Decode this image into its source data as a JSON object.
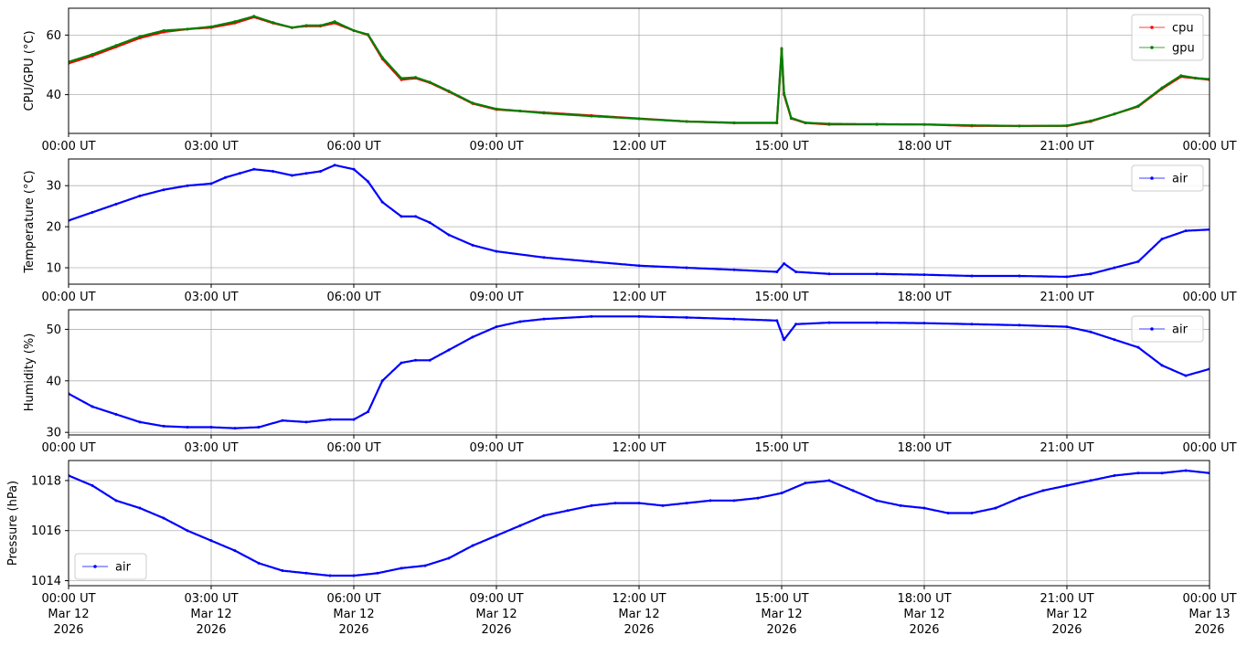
{
  "chart_data": [
    {
      "type": "line",
      "ylabel": "CPU/GPU (°C)",
      "ylim": [
        27,
        69
      ],
      "yticks": [
        40,
        60
      ],
      "grid": true,
      "legend_position": "top-right",
      "x_tick_labels": [
        "00:00 UT",
        "03:00 UT",
        "06:00 UT",
        "09:00 UT",
        "12:00 UT",
        "15:00 UT",
        "18:00 UT",
        "21:00 UT",
        "00:00 UT"
      ],
      "x_unit": "hours since 00:00 UT Mar 12 2026",
      "xlim": [
        0,
        24
      ],
      "series": [
        {
          "name": "cpu",
          "color": "#ff0000",
          "x": [
            0,
            0.5,
            1,
            1.5,
            2,
            2.5,
            3,
            3.5,
            3.9,
            4.3,
            4.7,
            5,
            5.3,
            5.6,
            6,
            6.3,
            6.6,
            7,
            7.3,
            7.6,
            8,
            8.5,
            9,
            9.5,
            10,
            11,
            12,
            13,
            14,
            14.9,
            15.0,
            15.05,
            15.2,
            15.5,
            16,
            17,
            18,
            19,
            20,
            21,
            21.5,
            22,
            22.5,
            23,
            23.4,
            23.7,
            24
          ],
          "y": [
            50.5,
            53,
            56,
            59,
            61,
            62,
            62.5,
            64,
            66,
            64,
            62.5,
            63,
            63,
            64,
            61.5,
            60,
            52,
            45,
            45.5,
            44,
            41,
            37,
            35,
            34.5,
            34,
            33,
            32,
            31,
            30.5,
            30.5,
            55,
            40,
            32,
            30.5,
            30,
            30,
            30,
            29.5,
            29.5,
            29.5,
            31,
            33.5,
            36,
            42,
            46,
            45.5,
            45
          ]
        },
        {
          "name": "gpu",
          "color": "#008000",
          "x": [
            0,
            0.5,
            1,
            1.5,
            2,
            2.5,
            3,
            3.5,
            3.9,
            4.3,
            4.7,
            5,
            5.3,
            5.6,
            6,
            6.3,
            6.6,
            7,
            7.3,
            7.6,
            8,
            8.5,
            9,
            9.5,
            10,
            11,
            12,
            13,
            14,
            14.9,
            15.0,
            15.05,
            15.2,
            15.5,
            16,
            17,
            18,
            19,
            20,
            21,
            21.5,
            22,
            22.5,
            23,
            23.4,
            23.7,
            24
          ],
          "y": [
            51,
            53.5,
            56.5,
            59.5,
            61.5,
            62,
            62.8,
            64.5,
            66.3,
            64.2,
            62.5,
            63.2,
            63.2,
            64.5,
            61.5,
            60.2,
            52.5,
            45.5,
            45.8,
            44.2,
            41.2,
            37.2,
            35.2,
            34.5,
            33.8,
            32.8,
            31.9,
            31,
            30.6,
            30.6,
            55.5,
            40.5,
            32.2,
            30.6,
            30.2,
            30.1,
            30,
            29.7,
            29.5,
            29.6,
            31.2,
            33.5,
            36.2,
            42.3,
            46.4,
            45.6,
            45.2
          ]
        }
      ]
    },
    {
      "type": "line",
      "ylabel": "Temperature (°C)",
      "ylim": [
        6,
        36.5
      ],
      "yticks": [
        10,
        20,
        30
      ],
      "grid": true,
      "legend_position": "top-right",
      "x_tick_labels": [
        "00:00 UT",
        "03:00 UT",
        "06:00 UT",
        "09:00 UT",
        "12:00 UT",
        "15:00 UT",
        "18:00 UT",
        "21:00 UT",
        "00:00 UT"
      ],
      "x_unit": "hours since 00:00 UT Mar 12 2026",
      "xlim": [
        0,
        24
      ],
      "series": [
        {
          "name": "air",
          "color": "#0000ff",
          "x": [
            0,
            0.5,
            1,
            1.5,
            2,
            2.5,
            3,
            3.3,
            3.6,
            3.9,
            4.3,
            4.7,
            5,
            5.3,
            5.6,
            6,
            6.3,
            6.6,
            7,
            7.3,
            7.6,
            8,
            8.5,
            9,
            10,
            11,
            12,
            13,
            14,
            14.9,
            15.05,
            15.3,
            16,
            17,
            18,
            19,
            20,
            21,
            21.5,
            22,
            22.5,
            23,
            23.5,
            24
          ],
          "y": [
            21.5,
            23.5,
            25.5,
            27.5,
            29,
            30,
            30.5,
            32,
            33,
            34,
            33.5,
            32.5,
            33,
            33.5,
            35,
            34,
            31,
            26,
            22.5,
            22.5,
            21,
            18,
            15.5,
            14,
            12.5,
            11.5,
            10.5,
            10,
            9.5,
            9,
            11,
            9,
            8.5,
            8.5,
            8.3,
            8,
            8,
            7.8,
            8.5,
            10,
            11.5,
            17,
            19,
            19.3
          ]
        }
      ]
    },
    {
      "type": "line",
      "ylabel": "Humidity (%)",
      "ylim": [
        29.5,
        53.8
      ],
      "yticks": [
        30,
        40,
        50
      ],
      "grid": true,
      "legend_position": "top-right",
      "x_tick_labels": [
        "00:00 UT",
        "03:00 UT",
        "06:00 UT",
        "09:00 UT",
        "12:00 UT",
        "15:00 UT",
        "18:00 UT",
        "21:00 UT",
        "00:00 UT"
      ],
      "x_unit": "hours since 00:00 UT Mar 12 2026",
      "xlim": [
        0,
        24
      ],
      "series": [
        {
          "name": "air",
          "color": "#0000ff",
          "x": [
            0,
            0.5,
            1,
            1.5,
            2,
            2.5,
            3,
            3.5,
            4,
            4.5,
            5,
            5.5,
            6,
            6.3,
            6.6,
            7,
            7.3,
            7.6,
            8,
            8.5,
            9,
            9.5,
            10,
            11,
            12,
            13,
            14,
            14.9,
            15.05,
            15.3,
            16,
            17,
            18,
            19,
            20,
            21,
            21.5,
            22,
            22.5,
            23,
            23.5,
            24
          ],
          "y": [
            37.5,
            35,
            33.5,
            32,
            31.2,
            31,
            31,
            30.8,
            31,
            32.3,
            32,
            32.5,
            32.5,
            34,
            40,
            43.5,
            44,
            44,
            46,
            48.5,
            50.5,
            51.5,
            52,
            52.5,
            52.5,
            52.3,
            52,
            51.7,
            48,
            51,
            51.3,
            51.3,
            51.2,
            51,
            50.8,
            50.5,
            49.5,
            48,
            46.5,
            43,
            41,
            42.3
          ]
        }
      ]
    },
    {
      "type": "line",
      "ylabel": "Pressure (hPa)",
      "ylim": [
        1013.8,
        1018.8
      ],
      "yticks": [
        1014,
        1016,
        1018
      ],
      "grid": true,
      "legend_position": "bottom-left",
      "x_tick_labels": [
        "00:00 UT\nMar 12\n2026",
        "03:00 UT\nMar 12\n2026",
        "06:00 UT\nMar 12\n2026",
        "09:00 UT\nMar 12\n2026",
        "12:00 UT\nMar 12\n2026",
        "15:00 UT\nMar 12\n2026",
        "18:00 UT\nMar 12\n2026",
        "21:00 UT\nMar 12\n2026",
        "00:00 UT\nMar 13\n2026"
      ],
      "x_unit": "hours since 00:00 UT Mar 12 2026",
      "xlim": [
        0,
        24
      ],
      "series": [
        {
          "name": "air",
          "color": "#0000ff",
          "x": [
            0,
            0.5,
            1,
            1.5,
            2,
            2.5,
            3,
            3.5,
            4,
            4.5,
            5,
            5.5,
            6,
            6.5,
            7,
            7.5,
            8,
            8.5,
            9,
            9.5,
            10,
            10.5,
            11,
            11.5,
            12,
            12.5,
            13,
            13.5,
            14,
            14.5,
            15,
            15.5,
            16,
            16.5,
            17,
            17.5,
            18,
            18.5,
            19,
            19.5,
            20,
            20.5,
            21,
            21.5,
            22,
            22.5,
            23,
            23.5,
            24
          ],
          "y": [
            1018.2,
            1017.8,
            1017.2,
            1016.9,
            1016.5,
            1016,
            1015.6,
            1015.2,
            1014.7,
            1014.4,
            1014.3,
            1014.2,
            1014.2,
            1014.3,
            1014.5,
            1014.6,
            1014.9,
            1015.4,
            1015.8,
            1016.2,
            1016.6,
            1016.8,
            1017,
            1017.1,
            1017.1,
            1017,
            1017.1,
            1017.2,
            1017.2,
            1017.3,
            1017.5,
            1017.9,
            1018,
            1017.6,
            1017.2,
            1017,
            1016.9,
            1016.7,
            1016.7,
            1016.9,
            1017.3,
            1017.6,
            1017.8,
            1018,
            1018.2,
            1018.3,
            1018.3,
            1018.4,
            1018.3
          ]
        }
      ]
    }
  ]
}
